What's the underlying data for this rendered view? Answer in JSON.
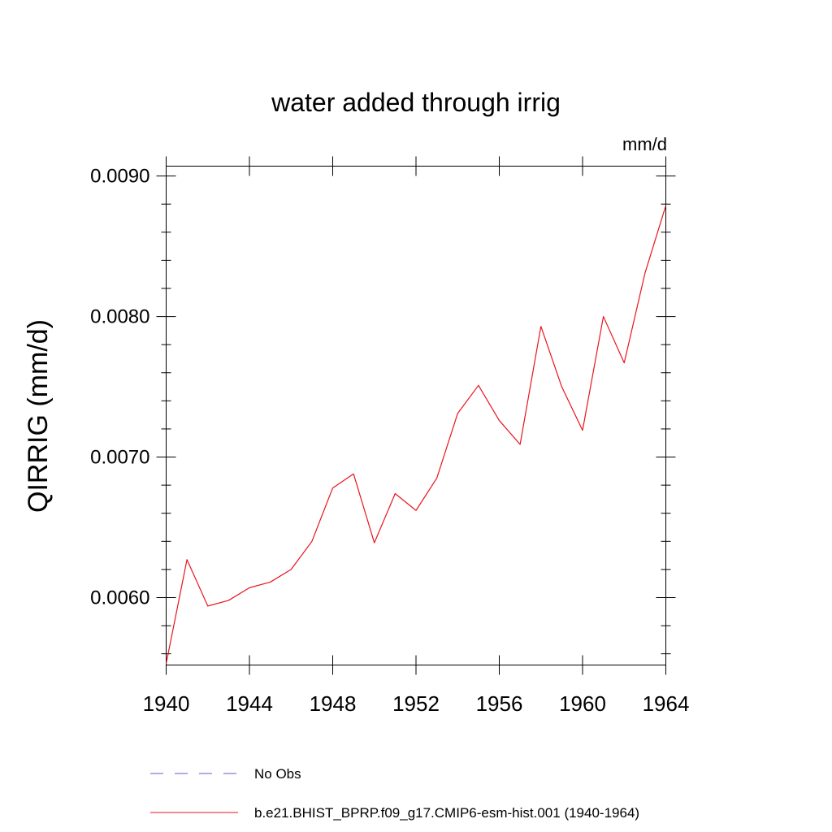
{
  "chart_data": {
    "type": "line",
    "title": "water added through irrig",
    "units_label": "mm/d",
    "ylabel": "QIRRIG  (mm/d)",
    "xlabel": "",
    "xlim": [
      1940,
      1964
    ],
    "ylim": [
      0.00552,
      0.00907
    ],
    "xticks": [
      1940,
      1944,
      1948,
      1952,
      1956,
      1960,
      1964
    ],
    "xtick_labels": [
      "1940",
      "1944",
      "1948",
      "1952",
      "1956",
      "1960",
      "1964"
    ],
    "yticks": [
      0.006,
      0.007,
      0.008,
      0.009
    ],
    "ytick_labels": [
      "0.0060",
      "0.0070",
      "0.0080",
      "0.0090"
    ],
    "x": [
      1940,
      1941,
      1942,
      1943,
      1944,
      1945,
      1946,
      1947,
      1948,
      1949,
      1950,
      1951,
      1952,
      1953,
      1954,
      1955,
      1956,
      1957,
      1958,
      1959,
      1960,
      1961,
      1962,
      1963,
      1964
    ],
    "series": [
      {
        "name": "b.e21.BHIST_BPRP.f09_g17.CMIP6-esm-hist.001 (1940-1964)",
        "color": "#e8141c",
        "style": "solid",
        "values": [
          0.00553,
          0.00627,
          0.00594,
          0.00598,
          0.00607,
          0.00611,
          0.0062,
          0.0064,
          0.00678,
          0.00688,
          0.00639,
          0.00674,
          0.00662,
          0.00685,
          0.00731,
          0.00751,
          0.00726,
          0.00709,
          0.00793,
          0.0075,
          0.00719,
          0.008,
          0.00767,
          0.00831,
          0.00879
        ]
      }
    ],
    "legend": {
      "placement": "bottom",
      "entries": [
        {
          "label": "No Obs",
          "color": "#6a5acd",
          "style": "dashed"
        },
        {
          "label": "b.e21.BHIST_BPRP.f09_g17.CMIP6-esm-hist.001 (1940-1964)",
          "color": "#e8141c",
          "style": "solid"
        }
      ]
    }
  }
}
